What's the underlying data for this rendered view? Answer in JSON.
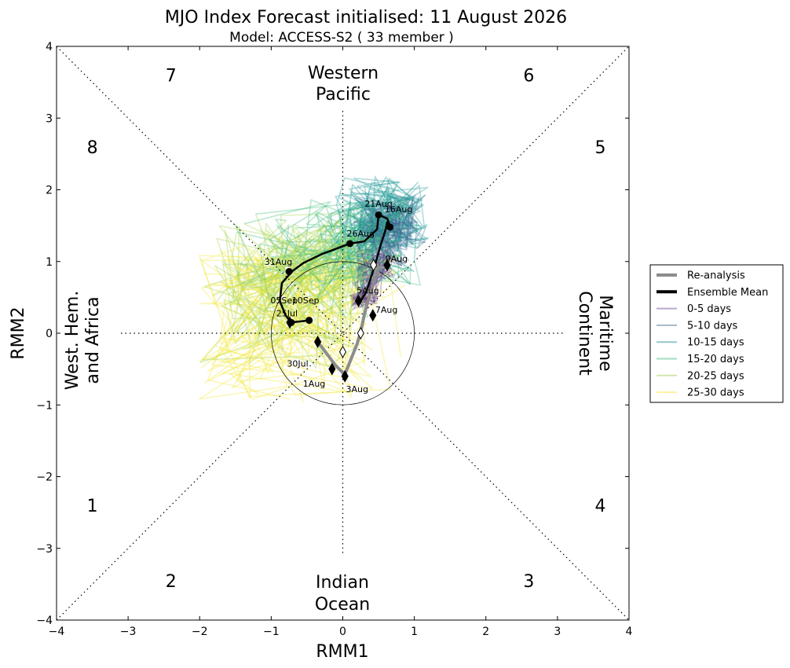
{
  "chart_data": {
    "type": "line",
    "title": "MJO Index Forecast initialised:  11  August 2026",
    "subtitle": "Model: ACCESS-S2 ( 33 member )",
    "xlabel": "RMM1",
    "ylabel": "RMM2",
    "xlim": [
      -4,
      4
    ],
    "ylim": [
      -4,
      4
    ],
    "xticks": [
      "−4",
      "−3",
      "−2",
      "−1",
      "0",
      "1",
      "2",
      "3",
      "4"
    ],
    "yticks": [
      "−4",
      "−3",
      "−2",
      "−1",
      "0",
      "1",
      "2",
      "3",
      "4"
    ],
    "phases": [
      {
        "label": "1",
        "x": -3.5,
        "y": -2.4
      },
      {
        "label": "2",
        "x": -2.4,
        "y": -3.45
      },
      {
        "label": "3",
        "x": 2.6,
        "y": -3.45
      },
      {
        "label": "4",
        "x": 3.6,
        "y": -2.4
      },
      {
        "label": "5",
        "x": 3.6,
        "y": 2.6
      },
      {
        "label": "6",
        "x": 2.6,
        "y": 3.6
      },
      {
        "label": "7",
        "x": -2.4,
        "y": 3.6
      },
      {
        "label": "8",
        "x": -3.5,
        "y": 2.6
      }
    ],
    "regions": {
      "top": [
        "Western",
        "Pacific"
      ],
      "bottom": [
        "Indian",
        "Ocean"
      ],
      "left": [
        "West. Hem.",
        "and Africa"
      ],
      "right": [
        "Maritime",
        "Continent"
      ]
    },
    "reanalysis": {
      "name": "Re-analysis",
      "points": [
        [
          -0.35,
          -0.12
        ],
        [
          -0.1,
          -0.45
        ],
        [
          0.0,
          -0.55
        ],
        [
          0.02,
          -0.6
        ],
        [
          0.12,
          -0.35
        ],
        [
          0.2,
          -0.15
        ],
        [
          0.25,
          0.02
        ],
        [
          0.3,
          0.25
        ],
        [
          0.35,
          0.45
        ],
        [
          0.4,
          0.6
        ],
        [
          0.45,
          0.75
        ],
        [
          0.5,
          0.92
        ]
      ],
      "labels": [
        {
          "text": "30Jul",
          "x": -0.35,
          "y": -0.12,
          "dx": -0.28,
          "dy": -0.3
        },
        {
          "text": "1Aug",
          "x": -0.1,
          "y": -0.5,
          "dx": -0.3,
          "dy": -0.2
        },
        {
          "text": "3Aug",
          "x": 0.02,
          "y": -0.6,
          "dx": 0.18,
          "dy": -0.18
        },
        {
          "text": "5Aug",
          "x": 0.25,
          "y": 0.4,
          "dx": 0.1,
          "dy": 0.2
        },
        {
          "text": "7Aug",
          "x": 0.43,
          "y": 0.2,
          "dx": 0.18,
          "dy": 0.13
        },
        {
          "text": "9Aug",
          "x": 0.6,
          "y": 0.92,
          "dx": 0.15,
          "dy": 0.12
        }
      ]
    },
    "ensemble_mean": {
      "name": "Ensemble Mean",
      "points": [
        [
          0.25,
          0.45
        ],
        [
          0.33,
          0.58
        ],
        [
          0.45,
          0.95
        ],
        [
          0.52,
          1.2
        ],
        [
          0.6,
          1.45
        ],
        [
          0.62,
          1.55
        ],
        [
          0.66,
          1.5
        ],
        [
          0.62,
          1.6
        ],
        [
          0.5,
          1.65
        ],
        [
          0.48,
          1.45
        ],
        [
          0.3,
          1.28
        ],
        [
          0.1,
          1.25
        ],
        [
          -0.3,
          1.1
        ],
        [
          -0.55,
          0.98
        ],
        [
          -0.7,
          0.87
        ],
        [
          -0.85,
          0.7
        ],
        [
          -0.88,
          0.45
        ],
        [
          -0.8,
          0.25
        ],
        [
          -0.72,
          0.15
        ],
        [
          -0.55,
          0.17
        ],
        [
          -0.45,
          0.18
        ]
      ],
      "dots": [
        {
          "x": 0.5,
          "y": 1.65,
          "label": "21Aug",
          "ldx": 0.0,
          "ldy": 0.16
        },
        {
          "x": 0.66,
          "y": 1.48,
          "label": "16Aug",
          "ldx": 0.12,
          "ldy": 0.25
        },
        {
          "x": 0.1,
          "y": 1.25,
          "label": "26Aug",
          "ldx": 0.15,
          "ldy": 0.14
        },
        {
          "x": -0.75,
          "y": 0.86,
          "label": "31Aug",
          "ldx": -0.15,
          "ldy": 0.14
        },
        {
          "x": -0.72,
          "y": 0.15,
          "label": "05Sep",
          "ldx": -0.1,
          "ldy": 0.31
        },
        {
          "x": -0.47,
          "y": 0.18,
          "label": "10Sep",
          "ldx": -0.05,
          "ldy": 0.28
        }
      ],
      "extra_label": {
        "text": "25Jul",
        "x": -0.78,
        "y": 0.28
      }
    },
    "diamonds_filled": [
      [
        -0.35,
        -0.12
      ],
      [
        -0.15,
        -0.5
      ],
      [
        0.03,
        -0.6
      ],
      [
        0.22,
        0.45
      ],
      [
        0.42,
        0.25
      ],
      [
        0.62,
        0.95
      ],
      [
        -0.74,
        0.15
      ]
    ],
    "diamonds_open": [
      [
        0.0,
        -0.26
      ],
      [
        0.25,
        0.0
      ],
      [
        0.43,
        0.95
      ]
    ],
    "legend": [
      {
        "label": "Re-analysis",
        "color": "#8c8c8c",
        "width": 4
      },
      {
        "label": "Ensemble Mean",
        "color": "#000000",
        "width": 4
      },
      {
        "label": "0-5 days",
        "color": "#bba9c9",
        "width": 2
      },
      {
        "label": "5-10 days",
        "color": "#a3b7c9",
        "width": 2
      },
      {
        "label": "10-15 days",
        "color": "#94c8c8",
        "width": 2
      },
      {
        "label": "15-20 days",
        "color": "#a2dcc0",
        "width": 2
      },
      {
        "label": "20-25 days",
        "color": "#cfe7a8",
        "width": 2
      },
      {
        "label": "25-30 days",
        "color": "#fff1a0",
        "width": 2
      }
    ],
    "ensemble_colors": [
      "#5b3a87",
      "#3f6394",
      "#219a98",
      "#3fbc7a",
      "#a6d44b",
      "#f3e83a"
    ]
  }
}
